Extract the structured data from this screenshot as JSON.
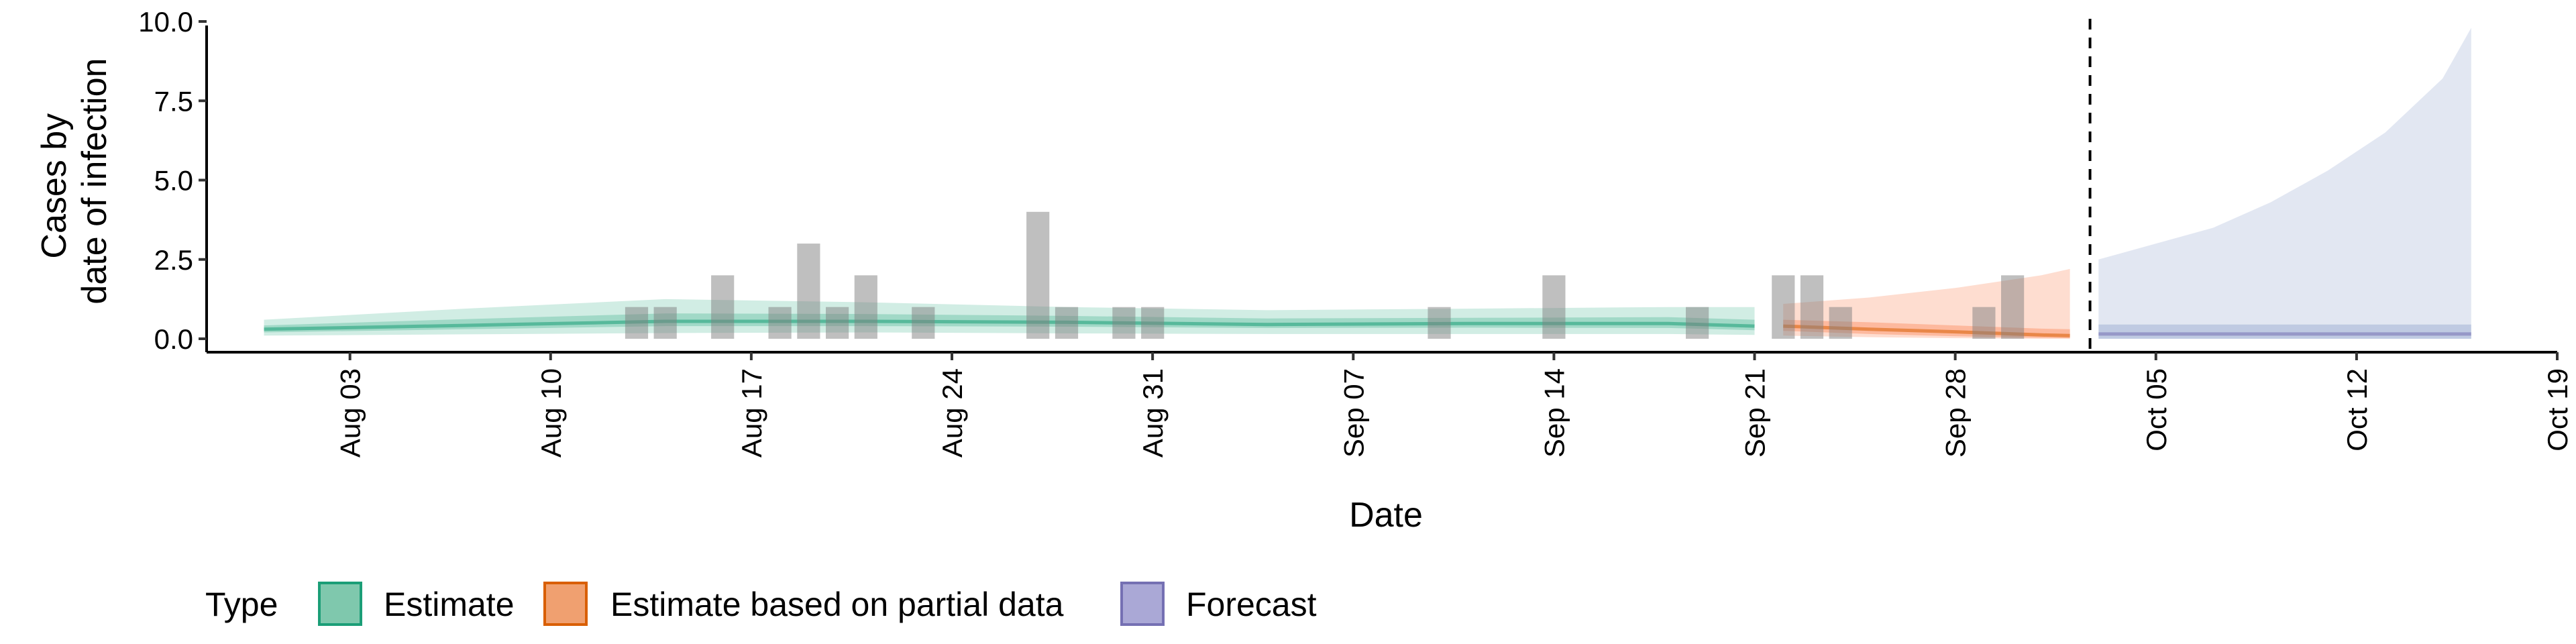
{
  "chart_data": {
    "type": "area",
    "xlabel": "Date",
    "ylabel_lines": [
      "Cases by",
      "date of infection"
    ],
    "ylim": [
      0,
      10
    ],
    "yticks": [
      "0.0",
      "2.5",
      "5.0",
      "7.5",
      "10.0"
    ],
    "xlim": [
      "2020-07-29",
      "2020-10-19"
    ],
    "xticks": [
      {
        "date": "2020-08-03",
        "label": "Aug 03"
      },
      {
        "date": "2020-08-10",
        "label": "Aug 10"
      },
      {
        "date": "2020-08-17",
        "label": "Aug 17"
      },
      {
        "date": "2020-08-24",
        "label": "Aug 24"
      },
      {
        "date": "2020-08-31",
        "label": "Aug 31"
      },
      {
        "date": "2020-09-07",
        "label": "Sep 07"
      },
      {
        "date": "2020-09-14",
        "label": "Sep 14"
      },
      {
        "date": "2020-09-21",
        "label": "Sep 21"
      },
      {
        "date": "2020-09-28",
        "label": "Sep 28"
      },
      {
        "date": "2020-10-05",
        "label": "Oct 05"
      },
      {
        "date": "2020-10-12",
        "label": "Oct 12"
      },
      {
        "date": "2020-10-19",
        "label": "Oct 19"
      }
    ],
    "forecast_cutoff": "2020-10-02",
    "observed_cases": {
      "color": "#7f7f7f",
      "points": [
        {
          "date": "2020-08-13",
          "value": 1
        },
        {
          "date": "2020-08-14",
          "value": 1
        },
        {
          "date": "2020-08-16",
          "value": 2
        },
        {
          "date": "2020-08-18",
          "value": 1
        },
        {
          "date": "2020-08-19",
          "value": 3
        },
        {
          "date": "2020-08-20",
          "value": 1
        },
        {
          "date": "2020-08-21",
          "value": 2
        },
        {
          "date": "2020-08-23",
          "value": 1
        },
        {
          "date": "2020-08-27",
          "value": 4
        },
        {
          "date": "2020-08-28",
          "value": 1
        },
        {
          "date": "2020-08-30",
          "value": 1
        },
        {
          "date": "2020-08-31",
          "value": 1
        },
        {
          "date": "2020-09-10",
          "value": 1
        },
        {
          "date": "2020-09-14",
          "value": 2
        },
        {
          "date": "2020-09-19",
          "value": 1
        },
        {
          "date": "2020-09-22",
          "value": 2
        },
        {
          "date": "2020-09-23",
          "value": 2
        },
        {
          "date": "2020-09-24",
          "value": 1
        },
        {
          "date": "2020-09-29",
          "value": 1
        },
        {
          "date": "2020-09-30",
          "value": 2
        }
      ]
    },
    "series": [
      {
        "name": "Estimate",
        "color": "#1b9e77",
        "fill": "#66c2a5",
        "median": [
          [
            "2020-07-31",
            0.3
          ],
          [
            "2020-08-07",
            0.42
          ],
          [
            "2020-08-14",
            0.55
          ],
          [
            "2020-08-21",
            0.55
          ],
          [
            "2020-08-28",
            0.52
          ],
          [
            "2020-09-04",
            0.45
          ],
          [
            "2020-09-11",
            0.48
          ],
          [
            "2020-09-18",
            0.48
          ],
          [
            "2020-09-21",
            0.4
          ]
        ],
        "inner_low": [
          [
            "2020-07-31",
            0.2
          ],
          [
            "2020-08-07",
            0.3
          ],
          [
            "2020-08-14",
            0.4
          ],
          [
            "2020-08-21",
            0.4
          ],
          [
            "2020-08-28",
            0.38
          ],
          [
            "2020-09-04",
            0.34
          ],
          [
            "2020-09-11",
            0.35
          ],
          [
            "2020-09-18",
            0.34
          ],
          [
            "2020-09-21",
            0.27
          ]
        ],
        "inner_high": [
          [
            "2020-07-31",
            0.42
          ],
          [
            "2020-08-07",
            0.62
          ],
          [
            "2020-08-14",
            0.8
          ],
          [
            "2020-08-21",
            0.78
          ],
          [
            "2020-08-28",
            0.72
          ],
          [
            "2020-09-04",
            0.64
          ],
          [
            "2020-09-11",
            0.66
          ],
          [
            "2020-09-18",
            0.68
          ],
          [
            "2020-09-21",
            0.6
          ]
        ],
        "outer_low": [
          [
            "2020-07-31",
            0.1
          ],
          [
            "2020-08-07",
            0.14
          ],
          [
            "2020-08-14",
            0.18
          ],
          [
            "2020-08-21",
            0.2
          ],
          [
            "2020-08-28",
            0.17
          ],
          [
            "2020-09-04",
            0.15
          ],
          [
            "2020-09-11",
            0.15
          ],
          [
            "2020-09-18",
            0.15
          ],
          [
            "2020-09-21",
            0.12
          ]
        ],
        "outer_high": [
          [
            "2020-07-31",
            0.6
          ],
          [
            "2020-08-07",
            0.95
          ],
          [
            "2020-08-14",
            1.25
          ],
          [
            "2020-08-21",
            1.15
          ],
          [
            "2020-08-28",
            1.0
          ],
          [
            "2020-09-04",
            0.9
          ],
          [
            "2020-09-11",
            0.95
          ],
          [
            "2020-09-18",
            1.0
          ],
          [
            "2020-09-21",
            1.0
          ]
        ]
      },
      {
        "name": "Estimate based on partial data",
        "color": "#d95f02",
        "fill": "#fc8d62",
        "median": [
          [
            "2020-09-22",
            0.4
          ],
          [
            "2020-09-25",
            0.3
          ],
          [
            "2020-09-28",
            0.22
          ],
          [
            "2020-10-01",
            0.12
          ],
          [
            "2020-10-02",
            0.1
          ]
        ],
        "inner_low": [
          [
            "2020-09-22",
            0.25
          ],
          [
            "2020-09-25",
            0.15
          ],
          [
            "2020-09-28",
            0.08
          ],
          [
            "2020-10-01",
            0.03
          ],
          [
            "2020-10-02",
            0.02
          ]
        ],
        "inner_high": [
          [
            "2020-09-22",
            0.6
          ],
          [
            "2020-09-25",
            0.52
          ],
          [
            "2020-09-28",
            0.42
          ],
          [
            "2020-10-01",
            0.32
          ],
          [
            "2020-10-02",
            0.3
          ]
        ],
        "outer_low": [
          [
            "2020-09-22",
            0.1
          ],
          [
            "2020-09-25",
            0.05
          ],
          [
            "2020-09-28",
            0.02
          ],
          [
            "2020-10-01",
            0.0
          ],
          [
            "2020-10-02",
            0.0
          ]
        ],
        "outer_high": [
          [
            "2020-09-22",
            1.1
          ],
          [
            "2020-09-25",
            1.3
          ],
          [
            "2020-09-28",
            1.6
          ],
          [
            "2020-10-01",
            2.0
          ],
          [
            "2020-10-02",
            2.2
          ]
        ]
      },
      {
        "name": "Forecast",
        "color": "#7570b3",
        "fill": "#8da0cb",
        "median": [
          [
            "2020-10-03",
            0.15
          ],
          [
            "2020-10-07",
            0.15
          ],
          [
            "2020-10-11",
            0.15
          ],
          [
            "2020-10-16",
            0.15
          ]
        ],
        "inner_low": [
          [
            "2020-10-03",
            0.0
          ],
          [
            "2020-10-16",
            0.0
          ]
        ],
        "inner_high": [
          [
            "2020-10-03",
            0.45
          ],
          [
            "2020-10-16",
            0.45
          ]
        ],
        "outer_low": [
          [
            "2020-10-03",
            0.0
          ],
          [
            "2020-10-16",
            0.0
          ]
        ],
        "outer_high": [
          [
            "2020-10-03",
            2.5
          ],
          [
            "2020-10-05",
            3.0
          ],
          [
            "2020-10-07",
            3.5
          ],
          [
            "2020-10-09",
            4.3
          ],
          [
            "2020-10-11",
            5.3
          ],
          [
            "2020-10-13",
            6.5
          ],
          [
            "2020-10-15",
            8.2
          ],
          [
            "2020-10-16",
            9.8
          ]
        ]
      }
    ],
    "legend": {
      "title": "Type",
      "position": "bottom",
      "items": [
        "Estimate",
        "Estimate based on partial data",
        "Forecast"
      ]
    }
  }
}
